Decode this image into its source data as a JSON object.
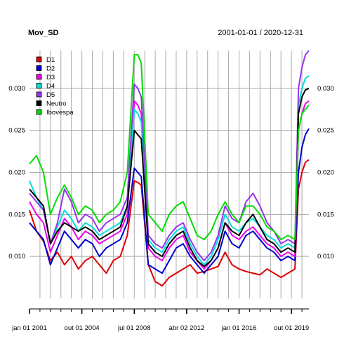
{
  "chart_data": {
    "type": "line",
    "title": "Mov_SD",
    "subtitle": "2001-01-01 / 2020-12-31",
    "xlabel": "",
    "ylabel": "",
    "x_range": [
      2001.0,
      2021.0
    ],
    "ylim": [
      0.005,
      0.0345
    ],
    "y_ticks": [
      {
        "value": 0.01,
        "label": "0.010"
      },
      {
        "value": 0.015,
        "label": "0.015"
      },
      {
        "value": 0.02,
        "label": "0.020"
      },
      {
        "value": 0.025,
        "label": "0.025"
      },
      {
        "value": 0.03,
        "label": "0.030"
      }
    ],
    "x_ticks": [
      {
        "value": 2001.0,
        "label": "jan 01 2001"
      },
      {
        "value": 2004.75,
        "label": "out 01 2004"
      },
      {
        "value": 2008.5,
        "label": "jul 01 2008"
      },
      {
        "value": 2012.25,
        "label": "abr 02 2012"
      },
      {
        "value": 2016.0,
        "label": "jan 01 2016"
      },
      {
        "value": 2019.75,
        "label": "out 01 2019"
      }
    ],
    "legend_position": "top-left",
    "x": [
      2001.0,
      2001.5,
      2002.0,
      2002.5,
      2003.0,
      2003.5,
      2004.0,
      2004.5,
      2005.0,
      2005.5,
      2006.0,
      2006.5,
      2007.0,
      2007.5,
      2008.0,
      2008.5,
      2008.75,
      2009.0,
      2009.5,
      2010.0,
      2010.5,
      2011.0,
      2011.5,
      2012.0,
      2012.5,
      2013.0,
      2013.5,
      2014.0,
      2014.5,
      2015.0,
      2015.5,
      2016.0,
      2016.5,
      2017.0,
      2017.5,
      2018.0,
      2018.5,
      2019.0,
      2019.5,
      2020.0,
      2020.25,
      2020.5,
      2020.75,
      2021.0
    ],
    "series": [
      {
        "name": "D1",
        "color": "#dd0000",
        "values": [
          0.0155,
          0.013,
          0.0118,
          0.0095,
          0.0105,
          0.009,
          0.01,
          0.0085,
          0.0095,
          0.01,
          0.009,
          0.008,
          0.0095,
          0.01,
          0.0125,
          0.019,
          0.0188,
          0.0185,
          0.009,
          0.007,
          0.0065,
          0.0075,
          0.008,
          0.0085,
          0.009,
          0.008,
          0.0082,
          0.0085,
          0.0088,
          0.0105,
          0.009,
          0.0085,
          0.0082,
          0.008,
          0.0078,
          0.0085,
          0.008,
          0.0075,
          0.008,
          0.0085,
          0.018,
          0.02,
          0.0212,
          0.0215
        ]
      },
      {
        "name": "D2",
        "color": "#0000cc",
        "values": [
          0.014,
          0.013,
          0.012,
          0.009,
          0.011,
          0.013,
          0.012,
          0.011,
          0.012,
          0.0115,
          0.01,
          0.011,
          0.0115,
          0.012,
          0.014,
          0.0205,
          0.02,
          0.0195,
          0.009,
          0.0085,
          0.008,
          0.0095,
          0.011,
          0.0115,
          0.01,
          0.009,
          0.008,
          0.009,
          0.01,
          0.013,
          0.0115,
          0.011,
          0.0125,
          0.013,
          0.012,
          0.011,
          0.0105,
          0.0095,
          0.01,
          0.0095,
          0.02,
          0.023,
          0.0245,
          0.0252
        ]
      },
      {
        "name": "D3",
        "color": "#ee00ee",
        "values": [
          0.0165,
          0.015,
          0.014,
          0.0105,
          0.0125,
          0.0145,
          0.0135,
          0.012,
          0.013,
          0.0125,
          0.0115,
          0.012,
          0.0125,
          0.013,
          0.015,
          0.0285,
          0.028,
          0.027,
          0.011,
          0.01,
          0.0095,
          0.011,
          0.012,
          0.0125,
          0.0105,
          0.0095,
          0.0085,
          0.0095,
          0.011,
          0.014,
          0.0125,
          0.012,
          0.013,
          0.0135,
          0.0125,
          0.0115,
          0.011,
          0.01,
          0.0105,
          0.01,
          0.025,
          0.027,
          0.0282,
          0.0285
        ]
      },
      {
        "name": "D4",
        "color": "#00dddd",
        "values": [
          0.019,
          0.017,
          0.0155,
          0.0115,
          0.0135,
          0.0155,
          0.0145,
          0.013,
          0.014,
          0.0135,
          0.0125,
          0.013,
          0.0135,
          0.014,
          0.016,
          0.0275,
          0.027,
          0.026,
          0.012,
          0.011,
          0.0105,
          0.012,
          0.013,
          0.0135,
          0.0115,
          0.01,
          0.009,
          0.01,
          0.012,
          0.015,
          0.0135,
          0.013,
          0.014,
          0.0145,
          0.0135,
          0.0125,
          0.012,
          0.011,
          0.0115,
          0.011,
          0.028,
          0.03,
          0.0312,
          0.0315
        ]
      },
      {
        "name": "D5",
        "color": "#9933ee",
        "values": [
          0.0175,
          0.0165,
          0.0155,
          0.0115,
          0.014,
          0.018,
          0.0165,
          0.014,
          0.015,
          0.0145,
          0.013,
          0.014,
          0.0145,
          0.015,
          0.017,
          0.0305,
          0.03,
          0.029,
          0.0125,
          0.0115,
          0.011,
          0.0125,
          0.0135,
          0.014,
          0.012,
          0.0105,
          0.0095,
          0.0105,
          0.0125,
          0.016,
          0.0145,
          0.014,
          0.0165,
          0.0175,
          0.016,
          0.014,
          0.013,
          0.0115,
          0.012,
          0.0115,
          0.03,
          0.0325,
          0.034,
          0.0345
        ]
      },
      {
        "name": "Neutro",
        "color": "#000000",
        "values": [
          0.018,
          0.017,
          0.016,
          0.0115,
          0.013,
          0.014,
          0.0135,
          0.013,
          0.0135,
          0.013,
          0.012,
          0.0125,
          0.013,
          0.0135,
          0.016,
          0.025,
          0.0245,
          0.024,
          0.0115,
          0.0105,
          0.01,
          0.0115,
          0.0125,
          0.013,
          0.011,
          0.0095,
          0.0088,
          0.0095,
          0.011,
          0.014,
          0.013,
          0.0125,
          0.014,
          0.015,
          0.0135,
          0.012,
          0.0115,
          0.0105,
          0.011,
          0.0105,
          0.027,
          0.029,
          0.0298,
          0.03
        ]
      },
      {
        "name": "Ibovespa",
        "color": "#00dd00",
        "values": [
          0.021,
          0.022,
          0.02,
          0.015,
          0.017,
          0.0185,
          0.017,
          0.015,
          0.016,
          0.0155,
          0.014,
          0.015,
          0.0155,
          0.0165,
          0.02,
          0.034,
          0.034,
          0.033,
          0.015,
          0.014,
          0.013,
          0.015,
          0.016,
          0.0165,
          0.0145,
          0.0125,
          0.012,
          0.013,
          0.015,
          0.0165,
          0.015,
          0.014,
          0.016,
          0.016,
          0.015,
          0.0135,
          0.013,
          0.012,
          0.0125,
          0.012,
          0.025,
          0.027,
          0.0275,
          0.028
        ]
      }
    ]
  }
}
